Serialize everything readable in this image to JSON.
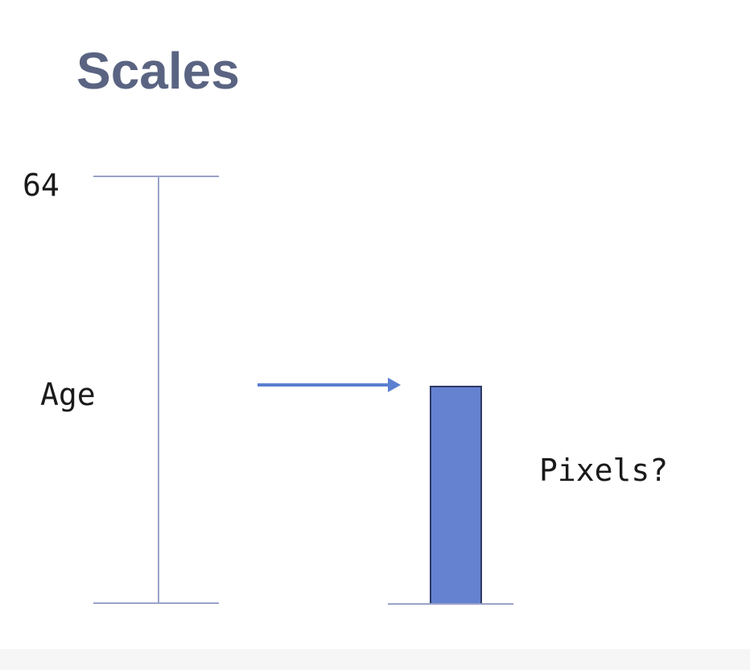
{
  "slide": {
    "title": "Scales"
  },
  "scale_diagram": {
    "domain_max_label": "64",
    "domain_label": "Age",
    "range_label": "Pixels?",
    "bar_fraction_of_domain": 0.51
  },
  "colors": {
    "title": "#5a6482",
    "axis_line": "#9aa3c8",
    "arrow": "#5b7fd1",
    "bar_fill": "#6482d0",
    "bar_stroke": "#2e3a66",
    "text": "#1a1a1a"
  }
}
